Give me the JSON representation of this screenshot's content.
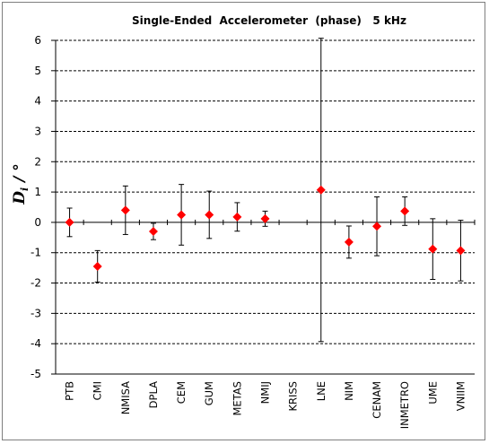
{
  "chart_data": {
    "type": "scatter",
    "title": "Single-Ended  Accelerometer  (phase)   5 kHz",
    "ylabel_main": "D",
    "ylabel_sub": "i",
    "ylabel_unit": " / °",
    "xlabel": "",
    "ylim": [
      -5,
      6
    ],
    "yticks": [
      -5,
      -4,
      -3,
      -2,
      -1,
      0,
      1,
      2,
      3,
      4,
      5,
      6
    ],
    "grid": "horizontal dashed",
    "legend": "none",
    "categories": [
      "PTB",
      "CMI",
      "NMISA",
      "DPLA",
      "CEM",
      "GUM",
      "METAS",
      "NMIJ",
      "KRISS",
      "LNE",
      "NIM",
      "CENAM",
      "INMETRO",
      "UME",
      "VNIIM"
    ],
    "values": [
      0.0,
      -1.45,
      0.4,
      -0.3,
      0.25,
      0.25,
      0.18,
      0.12,
      null,
      1.07,
      -0.65,
      -0.13,
      0.37,
      -0.88,
      -0.93
    ],
    "uncertainty": [
      0.47,
      0.52,
      0.8,
      0.27,
      1.0,
      0.78,
      0.47,
      0.25,
      null,
      5.0,
      0.53,
      0.97,
      0.47,
      1.0,
      1.0
    ],
    "marker_color": "#ff0000",
    "errorbar_color": "#000000"
  }
}
